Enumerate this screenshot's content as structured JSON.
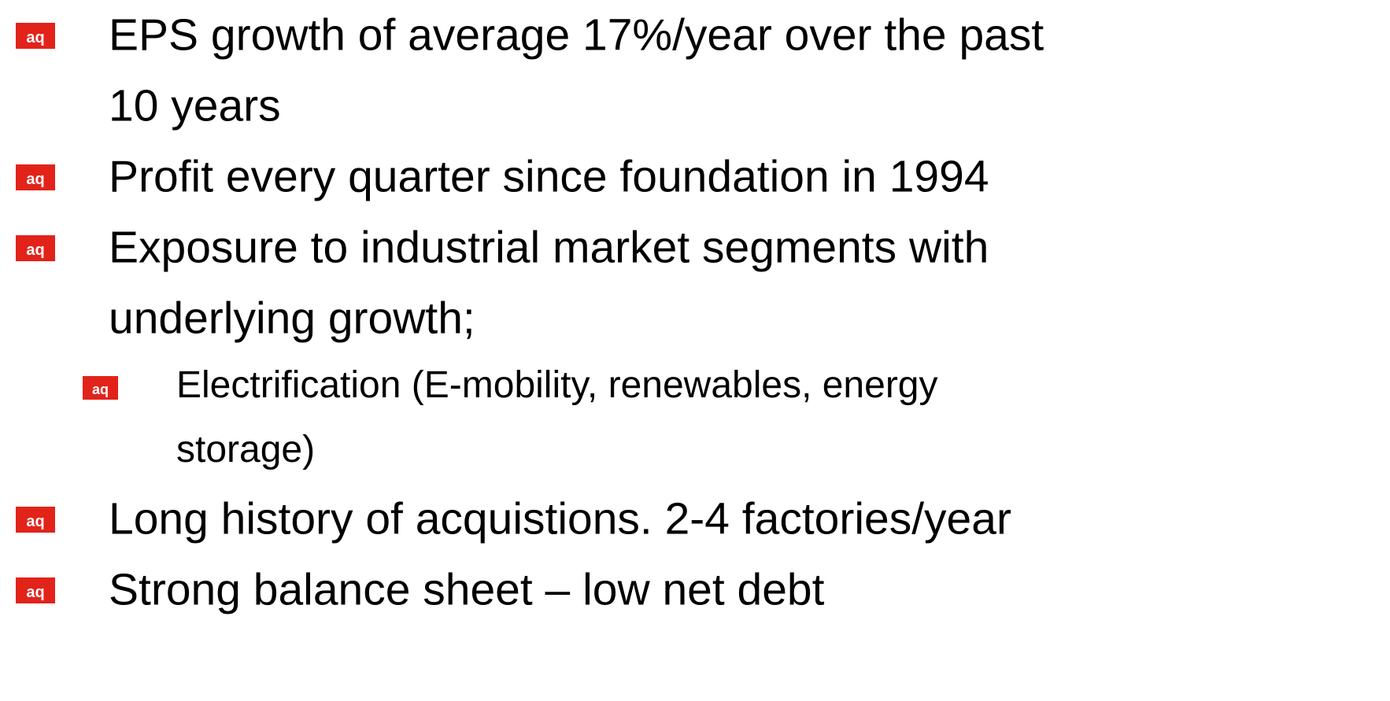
{
  "bullet_icon": "aq",
  "bullets": [
    {
      "lines": [
        "EPS growth of average 17%/year over the past",
        "10 years"
      ]
    },
    {
      "lines": [
        "Profit every quarter since foundation in 1994"
      ]
    },
    {
      "lines": [
        "Exposure to industrial market segments with",
        "underlying growth;"
      ],
      "sub_bullets": [
        {
          "lines": [
            "Electrification (E-mobility, renewables, energy",
            "storage)"
          ]
        }
      ]
    },
    {
      "lines": [
        "Long history of acquistions. 2-4 factories/year"
      ]
    },
    {
      "lines": [
        "Strong balance sheet – low net debt"
      ]
    }
  ]
}
